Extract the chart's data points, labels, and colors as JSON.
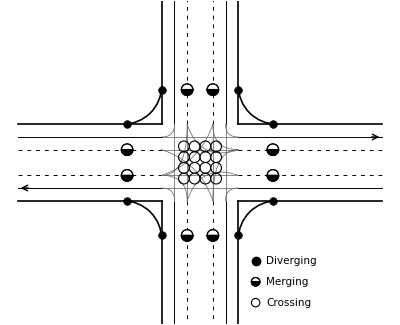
{
  "fig_width": 4.0,
  "fig_height": 3.25,
  "dpi": 100,
  "bg_color": "#ffffff",
  "road_color": "#000000",
  "curve_color": "#666666",
  "road_lw": 1.2,
  "lane_lw": 0.7,
  "curve_lw": 0.55,
  "rw": 0.2,
  "rl": 0.95,
  "corner_r": 0.2,
  "lane_off1": 0.067,
  "lane_off2": 0.133,
  "cross_r": 0.028,
  "cross_offsets": [
    -0.084,
    -0.028,
    0.028,
    0.084
  ],
  "div_r": 5.0,
  "merge_r": 0.03,
  "diverging_pts": [
    [
      -0.2,
      0.38
    ],
    [
      0.2,
      0.38
    ],
    [
      0.38,
      0.2
    ],
    [
      0.38,
      -0.2
    ],
    [
      0.2,
      -0.38
    ],
    [
      -0.2,
      -0.38
    ],
    [
      -0.38,
      -0.2
    ],
    [
      -0.38,
      0.2
    ]
  ],
  "merging_pts": [
    [
      -0.067,
      0.38
    ],
    [
      0.067,
      0.38
    ],
    [
      0.38,
      0.067
    ],
    [
      0.38,
      -0.067
    ],
    [
      0.067,
      -0.38
    ],
    [
      -0.067,
      -0.38
    ],
    [
      -0.38,
      -0.067
    ],
    [
      -0.38,
      0.067
    ]
  ],
  "xlim": [
    -1.0,
    1.0
  ],
  "ylim": [
    -0.84,
    0.84
  ],
  "legend_items": [
    {
      "label": "Diverging",
      "style": "filled",
      "fx": 0.645,
      "fy": 0.195
    },
    {
      "label": "Merging",
      "style": "half",
      "fx": 0.645,
      "fy": 0.13
    },
    {
      "label": "Crossing",
      "style": "open",
      "fx": 0.645,
      "fy": 0.065
    }
  ]
}
